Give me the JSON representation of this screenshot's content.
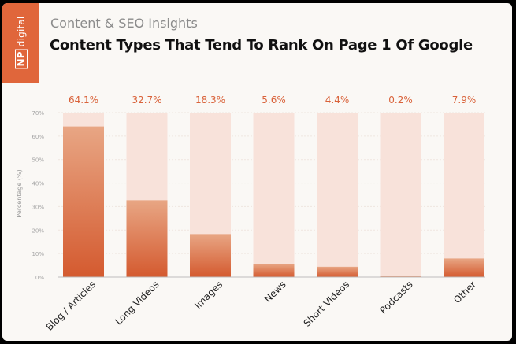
{
  "brand": {
    "logo_text": "NP digital",
    "logo_abbrev": "NP",
    "logo_rest": "digital",
    "color": "#e0663b"
  },
  "header": {
    "subtitle": "Content & SEO Insights",
    "title": "Content Types That Tend To Rank On Page 1 Of Google"
  },
  "chart_data": {
    "type": "bar",
    "title": "Content Types That Tend To Rank On Page 1 Of Google",
    "xlabel": "",
    "ylabel": "Percentage (%)",
    "ylim": [
      0,
      70
    ],
    "yticks": [
      "0%",
      "10%",
      "20%",
      "30%",
      "40%",
      "50%",
      "60%",
      "70%"
    ],
    "categories": [
      "Blog / Articles",
      "Long Videos",
      "Images",
      "News",
      "Short Videos",
      "Podcasts",
      "Other"
    ],
    "values": [
      64.1,
      32.7,
      18.3,
      5.6,
      4.4,
      0.2,
      7.9
    ],
    "value_labels": [
      "64.1%",
      "32.7%",
      "18.3%",
      "5.6%",
      "4.4%",
      "0.2%",
      "7.9%"
    ],
    "grid": true,
    "colors": {
      "bar": "#d9623a",
      "bar_light": "#e7a07f",
      "background_bar": "#f8e2da"
    }
  }
}
